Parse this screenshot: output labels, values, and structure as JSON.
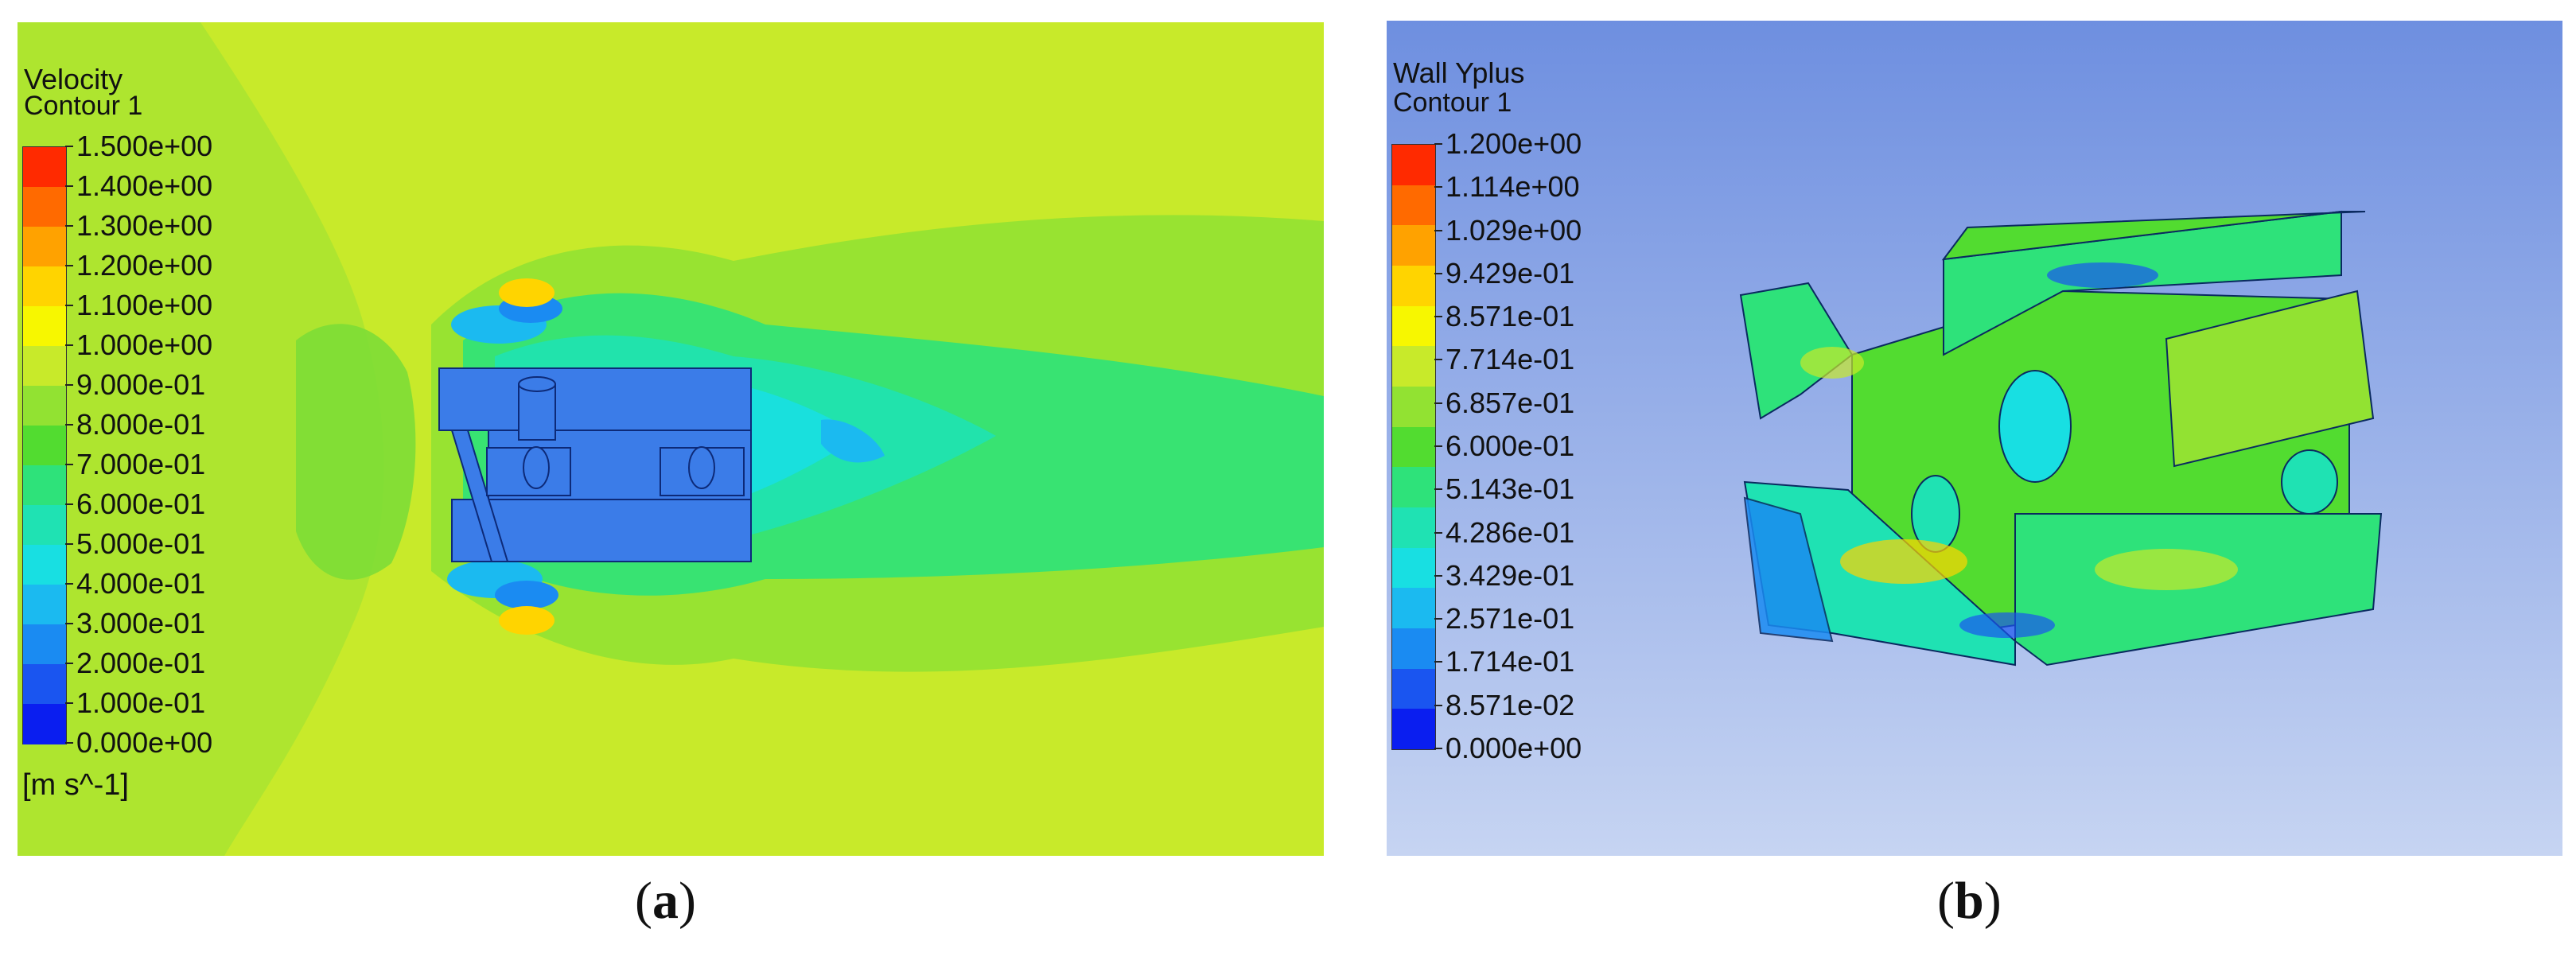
{
  "panels": [
    {
      "id": "a",
      "legend_title": "Velocity",
      "legend_subtitle": "Contour 1",
      "ticks": [
        "1.500e+00",
        "1.400e+00",
        "1.300e+00",
        "1.200e+00",
        "1.100e+00",
        "1.000e+00",
        "9.000e-01",
        "8.000e-01",
        "7.000e-01",
        "6.000e-01",
        "5.000e-01",
        "4.000e-01",
        "3.000e-01",
        "2.000e-01",
        "1.000e-01",
        "0.000e+00"
      ],
      "units": "[m s^-1]",
      "caption": "a",
      "background_color": "#c8ea2a"
    },
    {
      "id": "b",
      "legend_title": "Wall Yplus",
      "legend_subtitle": "Contour 1",
      "ticks": [
        "1.200e+00",
        "1.114e+00",
        "1.029e+00",
        "9.429e-01",
        "8.571e-01",
        "7.714e-01",
        "6.857e-01",
        "6.000e-01",
        "5.143e-01",
        "4.286e-01",
        "3.429e-01",
        "2.571e-01",
        "1.714e-01",
        "8.571e-02",
        "0.000e+00"
      ],
      "caption": "b",
      "background_gradient": [
        "#6e8fe0",
        "#c6d4f2"
      ]
    }
  ],
  "colormap": [
    "#ff2a00",
    "#ff6a00",
    "#ffa200",
    "#ffd400",
    "#f7f700",
    "#c8ea2a",
    "#92e232",
    "#52dc30",
    "#2ee27a",
    "#1fe2b3",
    "#18dfe2",
    "#1bbaf0",
    "#1a8bf2",
    "#1a55f0",
    "#0a1ef0"
  ]
}
